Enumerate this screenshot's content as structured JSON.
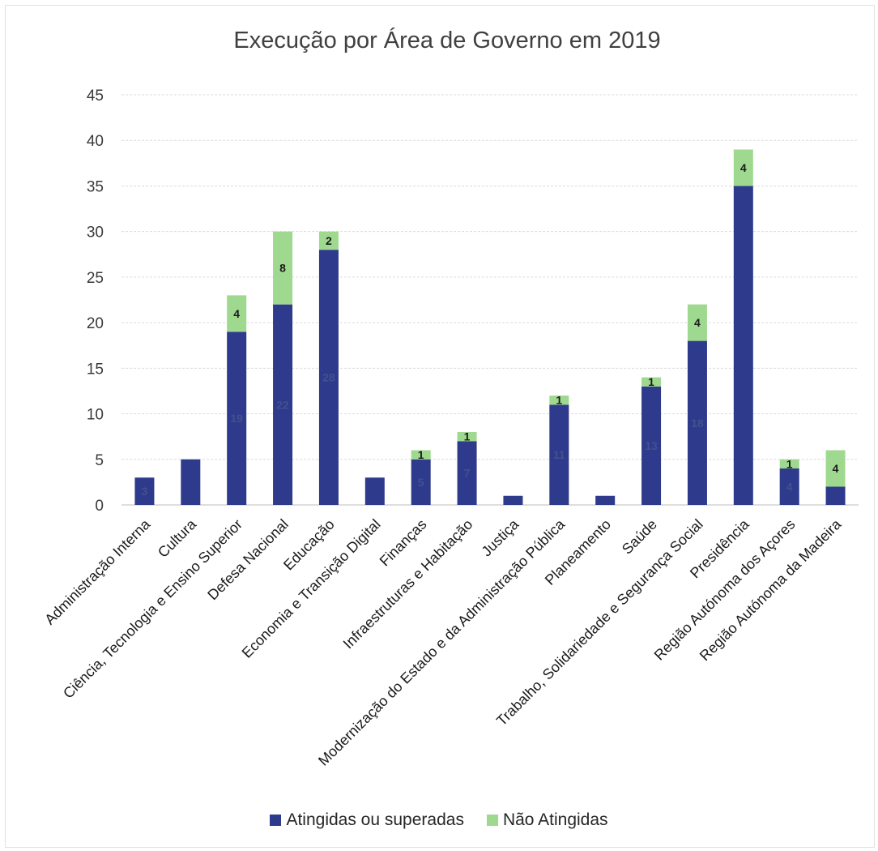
{
  "chart_data": {
    "type": "bar",
    "stacked": true,
    "title": "Execução por Área de Governo em 2019",
    "xlabel": "",
    "ylabel": "",
    "ylim": [
      0,
      45
    ],
    "yticks": [
      "0",
      "5",
      "10",
      "15",
      "20",
      "25",
      "30",
      "35",
      "40",
      "45"
    ],
    "grid": true,
    "legend_position": "bottom",
    "categories": [
      "Administração Interna",
      "Cultura",
      "Ciência, Tecnologia e Ensino Superior",
      "Defesa Nacional",
      "Educação",
      "Economia e Transição Digital",
      "Finanças",
      "Infraestruturas e Habitação",
      "Justiça",
      "Modernização do Estado e da Administração Pública",
      "Planeamento",
      "Saúde",
      "Trabalho, Solidariedade e Segurança Social",
      "Presidência",
      "Região Autónoma dos Açores",
      "Região Autónoma da Madeira"
    ],
    "series": [
      {
        "name": "Atingidas ou superadas",
        "color": "#2e3a8c",
        "values": [
          3,
          5,
          19,
          22,
          28,
          3,
          5,
          7,
          1,
          11,
          1,
          13,
          18,
          35,
          4,
          2
        ],
        "data_labels": [
          "3",
          "",
          "19",
          "22",
          "28",
          "",
          "5",
          "7",
          "",
          "11",
          "",
          "13",
          "18",
          "",
          "4",
          ""
        ]
      },
      {
        "name": "Não Atingidas",
        "color": "#9fd98f",
        "values": [
          0,
          0,
          4,
          8,
          2,
          0,
          1,
          1,
          0,
          1,
          0,
          1,
          4,
          4,
          1,
          4
        ],
        "data_labels": [
          "",
          "",
          "4",
          "8",
          "2",
          "",
          "1",
          "1",
          "",
          "1",
          "",
          "1",
          "4",
          "4",
          "1",
          "4"
        ]
      }
    ]
  }
}
